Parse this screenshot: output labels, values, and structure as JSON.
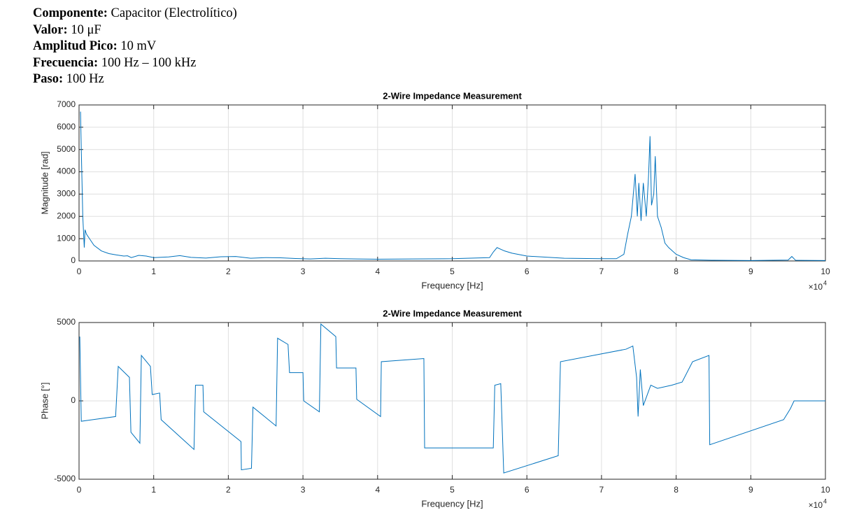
{
  "header": {
    "lines": [
      {
        "label": "Componente:",
        "value": "Capacitor (Electrolítico)"
      },
      {
        "label": "Valor:",
        "value": "10 μF"
      },
      {
        "label": "Amplitud Pico:",
        "value": "10 mV"
      },
      {
        "label": "Frecuencia:",
        "value": "100 Hz – 100 kHz"
      },
      {
        "label": "Paso:",
        "value": "100 Hz"
      }
    ]
  },
  "chart_data": [
    {
      "type": "line",
      "title": "2-Wire Impedance Measurement",
      "xlabel": "Frequency [Hz]",
      "ylabel": "Magnitude [rad]",
      "x_multiplier": {
        "base": "×10",
        "exponent": "4"
      },
      "xlim": [
        0,
        100000
      ],
      "ylim": [
        0,
        7000
      ],
      "grid": true,
      "color": "#0072bd",
      "xticks": [
        {
          "value": 0,
          "label": "0"
        },
        {
          "value": 10000,
          "label": "1"
        },
        {
          "value": 20000,
          "label": "2"
        },
        {
          "value": 30000,
          "label": "3"
        },
        {
          "value": 40000,
          "label": "4"
        },
        {
          "value": 50000,
          "label": "5"
        },
        {
          "value": 60000,
          "label": "6"
        },
        {
          "value": 70000,
          "label": "7"
        },
        {
          "value": 80000,
          "label": "8"
        },
        {
          "value": 90000,
          "label": "9"
        },
        {
          "value": 100000,
          "label": "10"
        }
      ],
      "yticks": [
        0,
        1000,
        2000,
        3000,
        4000,
        5000,
        6000,
        7000
      ],
      "x": [
        200,
        300,
        500,
        700,
        800,
        1000,
        2000,
        3000,
        4000,
        5000,
        6000,
        6500,
        7000,
        8000,
        9000,
        10000,
        12000,
        13500,
        15000,
        17000,
        19000,
        21000,
        23000,
        25000,
        27000,
        29000,
        31000,
        33000,
        35000,
        40000,
        45000,
        50000,
        55000,
        55500,
        56000,
        57000,
        58000,
        60000,
        65000,
        70000,
        72000,
        73000,
        73500,
        74000,
        74500,
        74800,
        75000,
        75300,
        75600,
        76000,
        76300,
        76500,
        76700,
        77000,
        77200,
        77500,
        78000,
        78500,
        79000,
        80000,
        81000,
        82000,
        85000,
        90000,
        95000,
        95500,
        96000,
        100000
      ],
      "values": [
        6700,
        5000,
        2000,
        600,
        1400,
        1200,
        700,
        450,
        330,
        270,
        220,
        230,
        150,
        250,
        220,
        150,
        180,
        240,
        160,
        130,
        190,
        200,
        120,
        150,
        140,
        110,
        90,
        120,
        100,
        80,
        90,
        100,
        150,
        400,
        600,
        450,
        350,
        220,
        120,
        100,
        100,
        300,
        1200,
        2000,
        3900,
        2000,
        3500,
        1800,
        3500,
        2000,
        3800,
        5600,
        2500,
        3000,
        4700,
        2000,
        1500,
        800,
        600,
        300,
        150,
        50,
        30,
        20,
        40,
        200,
        30,
        20
      ]
    },
    {
      "type": "line",
      "title": "2-Wire Impedance Measurement",
      "xlabel": "Frequency [Hz]",
      "ylabel": "Phase [°]",
      "x_multiplier": {
        "base": "×10",
        "exponent": "4"
      },
      "xlim": [
        0,
        100000
      ],
      "ylim": [
        -5000,
        5000
      ],
      "grid": true,
      "color": "#0072bd",
      "xticks": [
        {
          "value": 0,
          "label": "0"
        },
        {
          "value": 10000,
          "label": "1"
        },
        {
          "value": 20000,
          "label": "2"
        },
        {
          "value": 30000,
          "label": "3"
        },
        {
          "value": 40000,
          "label": "4"
        },
        {
          "value": 50000,
          "label": "5"
        },
        {
          "value": 60000,
          "label": "6"
        },
        {
          "value": 70000,
          "label": "7"
        },
        {
          "value": 80000,
          "label": "8"
        },
        {
          "value": 90000,
          "label": "9"
        },
        {
          "value": 100000,
          "label": "10"
        }
      ],
      "yticks": [
        -5000,
        0,
        5000
      ],
      "x": [
        100,
        300,
        4900,
        5250,
        6750,
        6950,
        8150,
        8350,
        9560,
        9800,
        10800,
        11000,
        15400,
        15600,
        16600,
        16700,
        21700,
        21750,
        23100,
        23300,
        26400,
        26600,
        28000,
        28200,
        30000,
        30100,
        32200,
        32400,
        34400,
        34500,
        37100,
        37200,
        40400,
        40500,
        46200,
        46300,
        55500,
        55700,
        56500,
        56900,
        64200,
        64500,
        73300,
        74200,
        74700,
        74900,
        75200,
        75600,
        76600,
        77500,
        79400,
        80800,
        82200,
        84400,
        84500,
        94400,
        95300,
        95800,
        100000
      ],
      "values": [
        4100,
        -1300,
        -1000,
        2200,
        1500,
        -2000,
        -2700,
        2900,
        2200,
        400,
        500,
        -1200,
        -3100,
        1000,
        1000,
        -700,
        -2600,
        -4400,
        -4300,
        -400,
        -1600,
        4000,
        3600,
        1800,
        1800,
        0,
        -700,
        4900,
        4100,
        2100,
        2100,
        100,
        -1000,
        2500,
        2700,
        -3000,
        -3000,
        1000,
        1100,
        -4600,
        -3500,
        2500,
        3300,
        3500,
        1500,
        -1000,
        2000,
        -300,
        1000,
        800,
        1000,
        1200,
        2500,
        2900,
        -2800,
        -1200,
        -500,
        0,
        0
      ]
    }
  ]
}
